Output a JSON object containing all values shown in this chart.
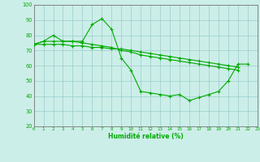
{
  "xlabel": "Humidité relative (%)",
  "background_color": "#cceee8",
  "grid_color": "#99cccc",
  "line_color": "#00aa00",
  "x": [
    0,
    1,
    2,
    3,
    4,
    5,
    6,
    7,
    8,
    9,
    10,
    11,
    12,
    13,
    14,
    15,
    16,
    17,
    18,
    19,
    20,
    21,
    22,
    23
  ],
  "line1": [
    74,
    76,
    80,
    76,
    76,
    76,
    87,
    91,
    84,
    65,
    57,
    43,
    42,
    41,
    40,
    41,
    37,
    39,
    41,
    43,
    50,
    61,
    61,
    null
  ],
  "line2": [
    74,
    76,
    76,
    76,
    76,
    75,
    74,
    73,
    72,
    70,
    69,
    67,
    66,
    65,
    64,
    63,
    62,
    61,
    60,
    59,
    58,
    57,
    null,
    null
  ],
  "line3": [
    74,
    74,
    74,
    74,
    73,
    73,
    72,
    72,
    71,
    71,
    70,
    69,
    68,
    67,
    66,
    65,
    64,
    63,
    62,
    61,
    60,
    59,
    null,
    null
  ],
  "ylim": [
    20,
    100
  ],
  "xlim": [
    0,
    23
  ],
  "yticks": [
    20,
    30,
    40,
    50,
    60,
    70,
    80,
    90,
    100
  ],
  "xticks": [
    0,
    1,
    2,
    3,
    4,
    5,
    6,
    7,
    8,
    9,
    10,
    11,
    12,
    13,
    14,
    15,
    16,
    17,
    18,
    19,
    20,
    21,
    22,
    23
  ]
}
